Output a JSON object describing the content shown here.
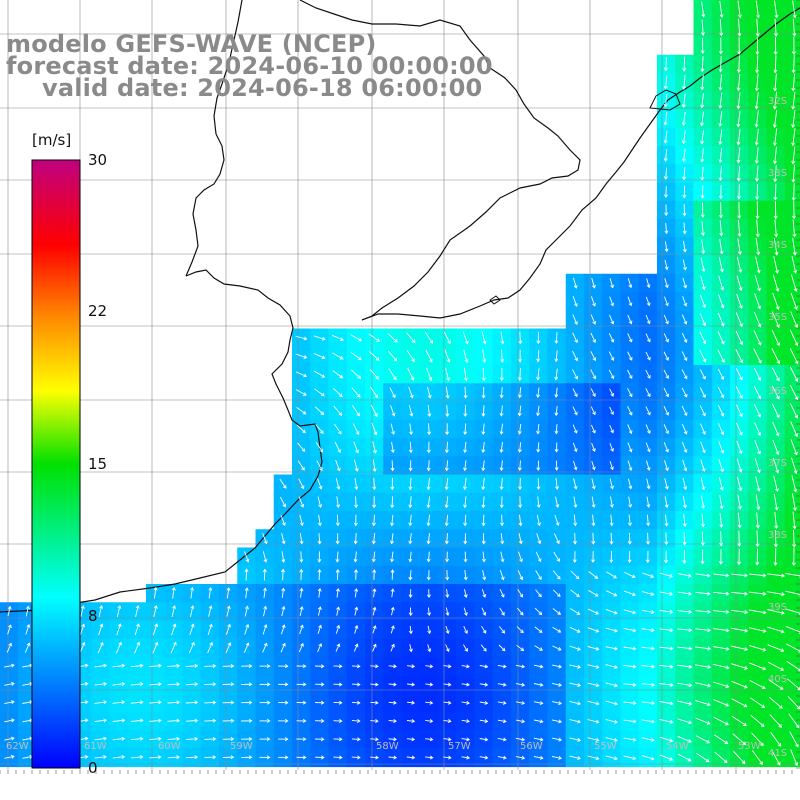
{
  "titles": {
    "line1": "modelo GEFS-WAVE (NCEP)",
    "line2": "forecast date: 2024-06-10 00:00:00",
    "line3": "valid date: 2024-06-18 06:00:00"
  },
  "colorbar": {
    "unit": "[m/s]",
    "ticks": [
      "30",
      "22",
      "15",
      "8",
      "0"
    ],
    "range": [
      0,
      30
    ]
  },
  "grid_labels": {
    "latitudes": [
      "32S",
      "33S",
      "34S",
      "35S",
      "36S",
      "37S",
      "38S",
      "39S",
      "40S",
      "41S"
    ],
    "longitudes": [
      "62W",
      "61W",
      "60W",
      "59W",
      "58W",
      "57W",
      "56W",
      "55W",
      "54W",
      "53W"
    ]
  },
  "colors": {
    "coastline": "#111111",
    "land": "#ffffff",
    "arrows": "#ffffff",
    "title": "#8a8a8a"
  }
}
